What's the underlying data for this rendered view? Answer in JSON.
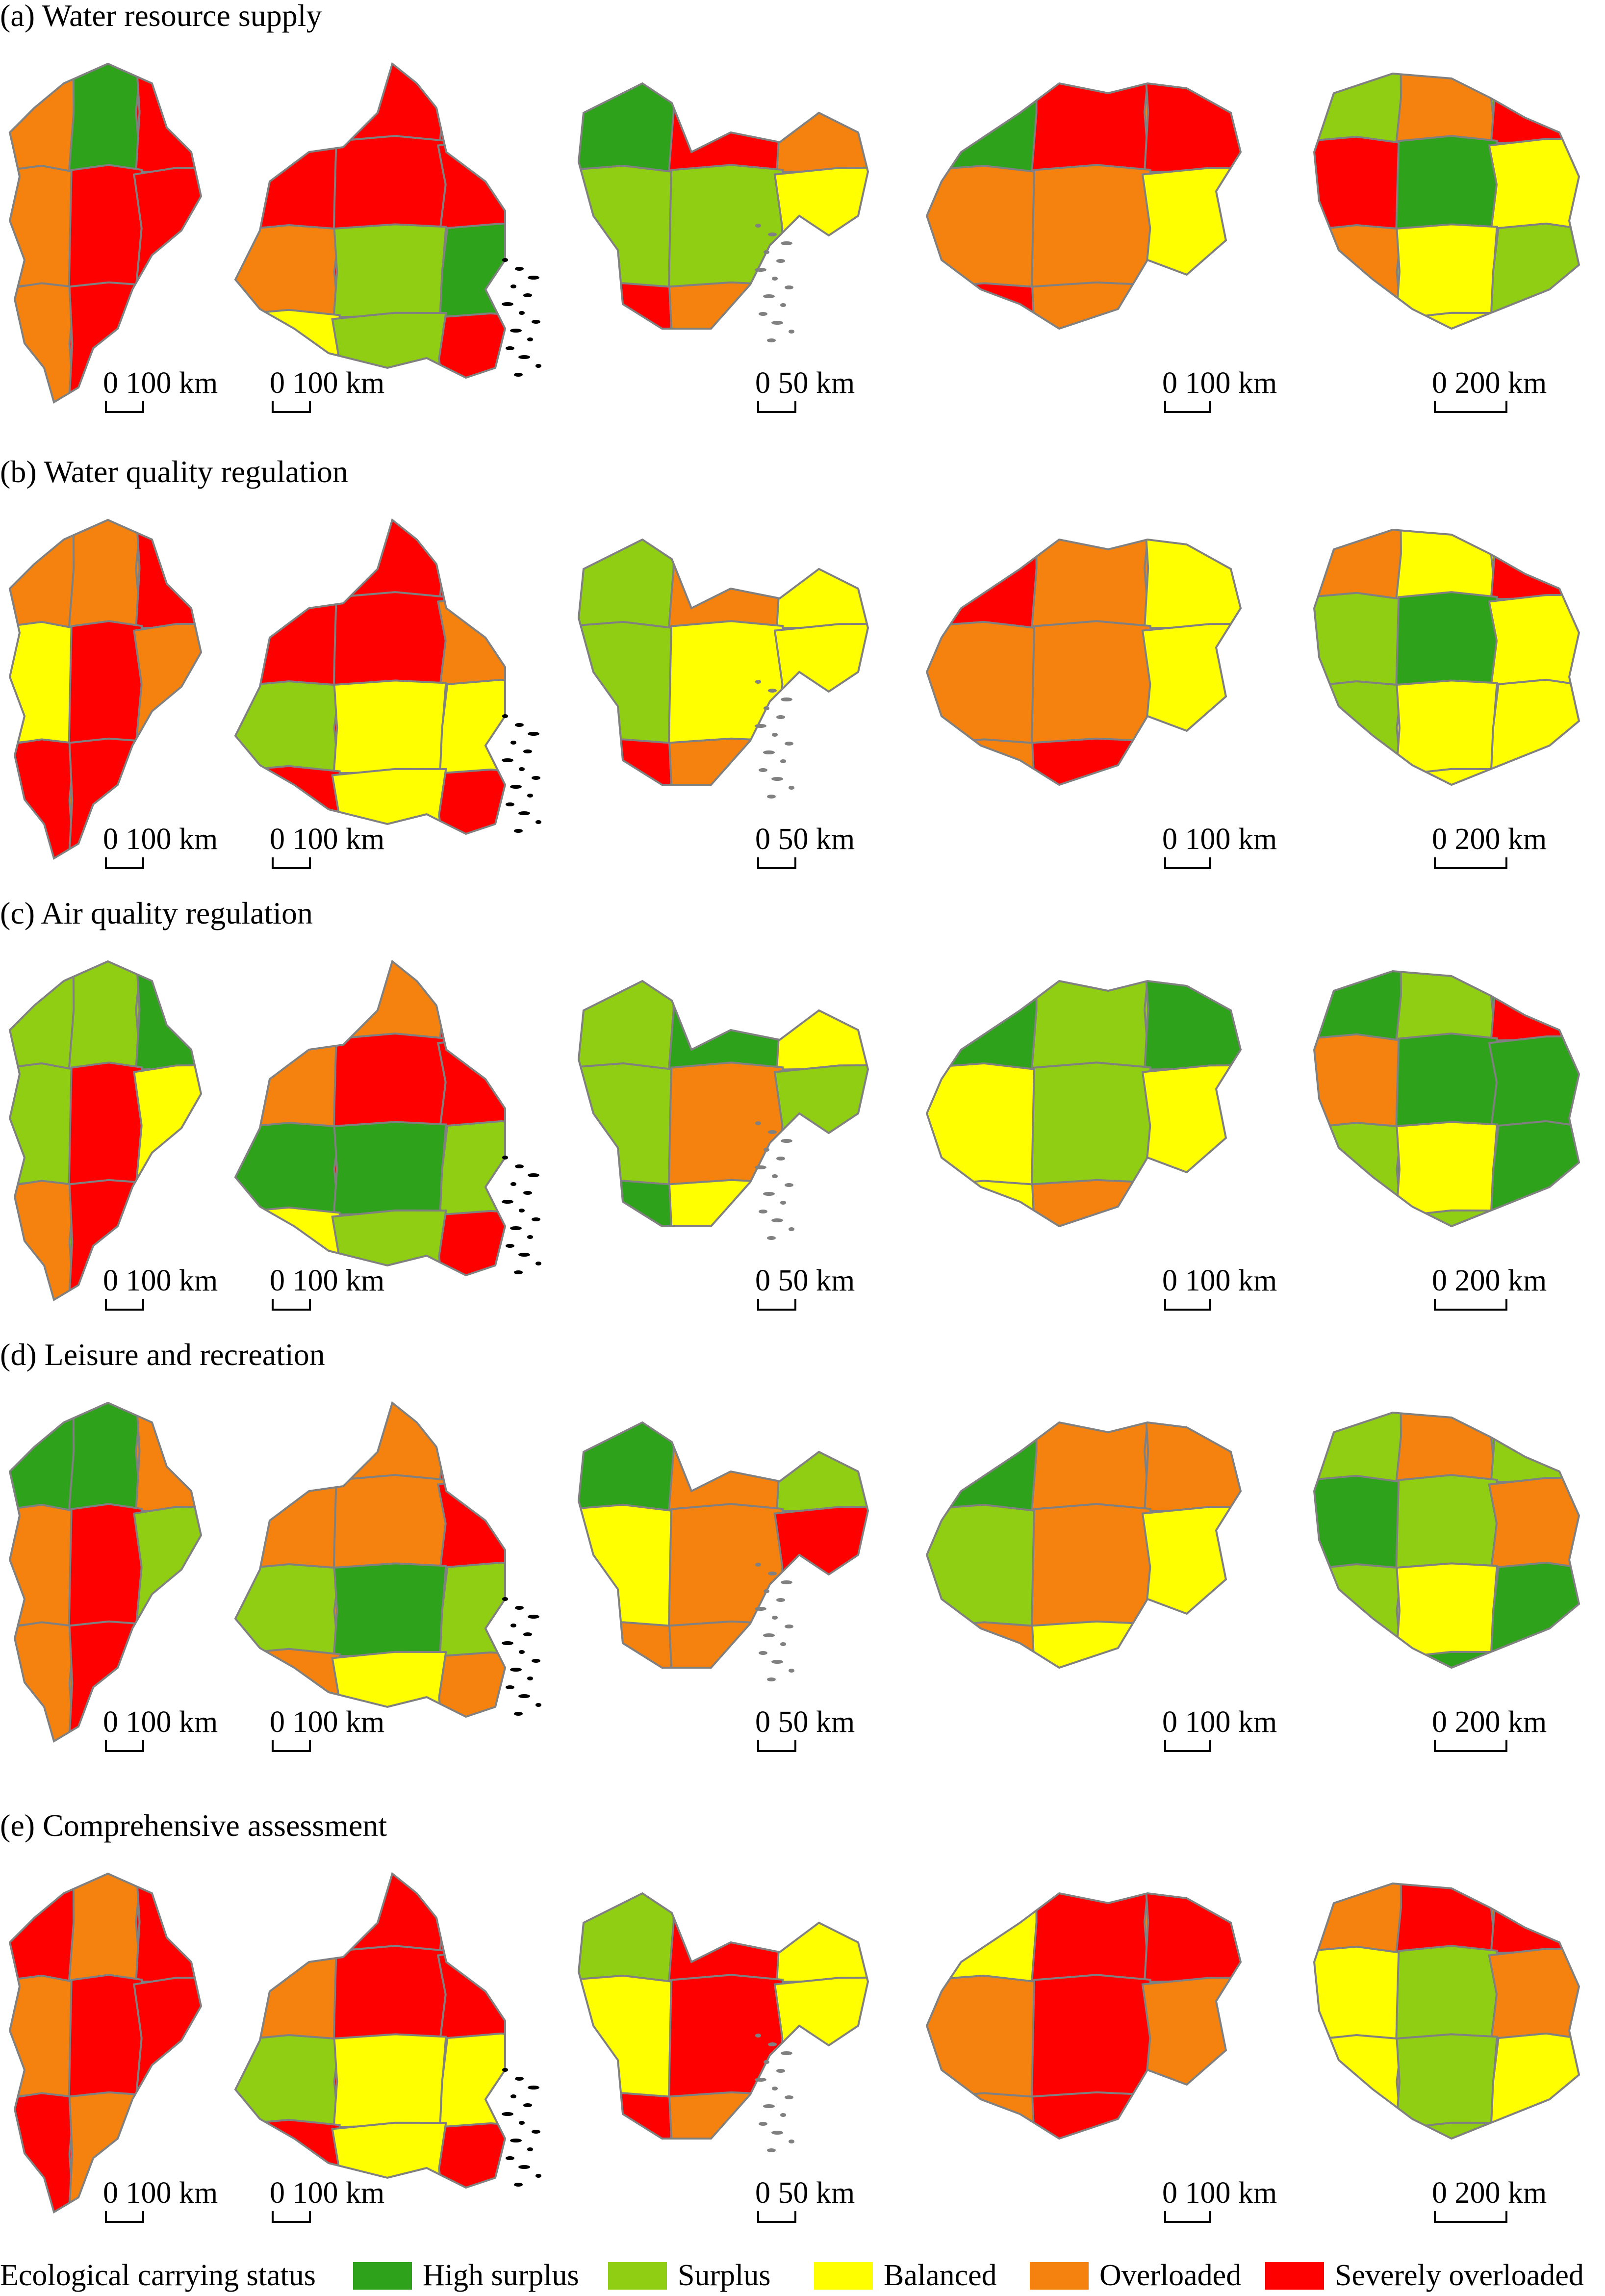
{
  "colors": {
    "high_surplus": "#2ea21a",
    "surplus": "#8fce12",
    "balanced": "#ffff00",
    "overloaded": "#f5820f",
    "severely_overloaded": "#ff0000",
    "boundary": "#808080",
    "islands": "#000000"
  },
  "panels": [
    {
      "title": "(a) Water resource supply",
      "maps": [
        {
          "icon": "region-map-1",
          "scale": "0 100 km",
          "main": "severely_overloaded",
          "mosaic": [
            "overloaded",
            "high_surplus",
            "severely_overloaded",
            "overloaded",
            "severely_overloaded",
            "severely_overloaded",
            "overloaded",
            "severely_overloaded",
            "severely_overloaded"
          ]
        },
        {
          "icon": "region-map-2",
          "scale": "0 100 km",
          "main": "severely_overloaded",
          "mosaic": [
            "severely_overloaded",
            "severely_overloaded",
            "severely_overloaded",
            "severely_overloaded",
            "severely_overloaded",
            "severely_overloaded",
            "overloaded",
            "surplus",
            "high_surplus",
            "balanced",
            "surplus"
          ]
        },
        {
          "icon": "region-map-3",
          "scale": "0 50 km",
          "main": "overloaded",
          "mosaic": [
            "high_surplus",
            "severely_overloaded",
            "overloaded",
            "surplus",
            "surplus",
            "balanced",
            "severely_overloaded",
            "overloaded",
            "balanced"
          ]
        },
        {
          "icon": "region-map-4",
          "scale": "0 100 km",
          "main": "overloaded",
          "mosaic": [
            "high_surplus",
            "severely_overloaded",
            "severely_overloaded",
            "overloaded",
            "overloaded",
            "balanced",
            "severely_overloaded",
            "overloaded",
            "overloaded"
          ]
        },
        {
          "icon": "region-map-5",
          "scale": "0 200 km",
          "main": "surplus",
          "mosaic": [
            "surplus",
            "overloaded",
            "severely_overloaded",
            "severely_overloaded",
            "high_surplus",
            "balanced",
            "overloaded",
            "balanced",
            "surplus",
            "high_surplus",
            "balanced",
            "surplus"
          ]
        }
      ]
    },
    {
      "title": "(b) Water quality regulation",
      "maps": [
        {
          "icon": "region-map-1",
          "scale": "0 100 km",
          "main": "overloaded",
          "mosaic": [
            "overloaded",
            "overloaded",
            "severely_overloaded",
            "balanced",
            "severely_overloaded",
            "overloaded",
            "severely_overloaded",
            "severely_overloaded",
            "overloaded"
          ]
        },
        {
          "icon": "region-map-2",
          "scale": "0 100 km",
          "main": "severely_overloaded",
          "mosaic": [
            "overloaded",
            "severely_overloaded",
            "severely_overloaded",
            "severely_overloaded",
            "severely_overloaded",
            "overloaded",
            "surplus",
            "balanced",
            "balanced",
            "severely_overloaded",
            "balanced"
          ]
        },
        {
          "icon": "region-map-3",
          "scale": "0 50 km",
          "main": "overloaded",
          "mosaic": [
            "surplus",
            "overloaded",
            "balanced",
            "surplus",
            "balanced",
            "balanced",
            "severely_overloaded",
            "overloaded",
            "balanced"
          ]
        },
        {
          "icon": "region-map-4",
          "scale": "0 100 km",
          "main": "overloaded",
          "mosaic": [
            "severely_overloaded",
            "overloaded",
            "balanced",
            "overloaded",
            "overloaded",
            "balanced",
            "overloaded",
            "severely_overloaded",
            "overloaded"
          ]
        },
        {
          "icon": "region-map-5",
          "scale": "0 200 km",
          "main": "balanced",
          "mosaic": [
            "overloaded",
            "balanced",
            "severely_overloaded",
            "surplus",
            "high_surplus",
            "balanced",
            "surplus",
            "balanced",
            "balanced",
            "high_surplus",
            "balanced",
            "surplus"
          ]
        }
      ]
    },
    {
      "title": "(c) Air quality regulation",
      "maps": [
        {
          "icon": "region-map-1",
          "scale": "0 100 km",
          "main": "surplus",
          "mosaic": [
            "surplus",
            "surplus",
            "high_surplus",
            "surplus",
            "severely_overloaded",
            "balanced",
            "overloaded",
            "severely_overloaded",
            "severely_overloaded"
          ]
        },
        {
          "icon": "region-map-2",
          "scale": "0 100 km",
          "main": "severely_overloaded",
          "mosaic": [
            "balanced",
            "overloaded",
            "severely_overloaded",
            "overloaded",
            "severely_overloaded",
            "severely_overloaded",
            "high_surplus",
            "high_surplus",
            "surplus",
            "balanced",
            "surplus"
          ]
        },
        {
          "icon": "region-map-3",
          "scale": "0 50 km",
          "main": "surplus",
          "mosaic": [
            "surplus",
            "high_surplus",
            "balanced",
            "surplus",
            "overloaded",
            "surplus",
            "high_surplus",
            "balanced",
            "surplus"
          ]
        },
        {
          "icon": "region-map-4",
          "scale": "0 100 km",
          "main": "surplus",
          "mosaic": [
            "high_surplus",
            "surplus",
            "high_surplus",
            "balanced",
            "surplus",
            "balanced",
            "balanced",
            "overloaded",
            "balanced"
          ]
        },
        {
          "icon": "region-map-5",
          "scale": "0 200 km",
          "main": "high_surplus",
          "mosaic": [
            "high_surplus",
            "surplus",
            "severely_overloaded",
            "overloaded",
            "high_surplus",
            "high_surplus",
            "surplus",
            "balanced",
            "high_surplus",
            "high_surplus",
            "surplus",
            "high_surplus"
          ]
        }
      ]
    },
    {
      "title": "(d) Leisure and recreation",
      "maps": [
        {
          "icon": "region-map-1",
          "scale": "0 100 km",
          "main": "overloaded",
          "mosaic": [
            "high_surplus",
            "high_surplus",
            "overloaded",
            "overloaded",
            "severely_overloaded",
            "surplus",
            "overloaded",
            "severely_overloaded",
            "overloaded"
          ]
        },
        {
          "icon": "region-map-2",
          "scale": "0 100 km",
          "main": "overloaded",
          "mosaic": [
            "overloaded",
            "overloaded",
            "severely_overloaded",
            "overloaded",
            "overloaded",
            "severely_overloaded",
            "surplus",
            "high_surplus",
            "surplus",
            "overloaded",
            "balanced"
          ]
        },
        {
          "icon": "region-map-3",
          "scale": "0 50 km",
          "main": "overloaded",
          "mosaic": [
            "high_surplus",
            "overloaded",
            "surplus",
            "balanced",
            "overloaded",
            "severely_overloaded",
            "overloaded",
            "overloaded",
            "balanced"
          ]
        },
        {
          "icon": "region-map-4",
          "scale": "0 100 km",
          "main": "overloaded",
          "mosaic": [
            "high_surplus",
            "overloaded",
            "overloaded",
            "surplus",
            "overloaded",
            "balanced",
            "overloaded",
            "balanced",
            "overloaded"
          ]
        },
        {
          "icon": "region-map-5",
          "scale": "0 200 km",
          "main": "surplus",
          "mosaic": [
            "surplus",
            "overloaded",
            "surplus",
            "high_surplus",
            "surplus",
            "overloaded",
            "surplus",
            "balanced",
            "high_surplus",
            "surplus",
            "high_surplus",
            "surplus"
          ]
        }
      ]
    },
    {
      "title": "(e) Comprehensive assessment",
      "maps": [
        {
          "icon": "region-map-1",
          "scale": "0 100 km",
          "main": "severely_overloaded",
          "mosaic": [
            "severely_overloaded",
            "overloaded",
            "severely_overloaded",
            "overloaded",
            "severely_overloaded",
            "severely_overloaded",
            "severely_overloaded",
            "overloaded",
            "severely_overloaded"
          ]
        },
        {
          "icon": "region-map-2",
          "scale": "0 100 km",
          "main": "severely_overloaded",
          "mosaic": [
            "severely_overloaded",
            "severely_overloaded",
            "severely_overloaded",
            "overloaded",
            "severely_overloaded",
            "severely_overloaded",
            "surplus",
            "balanced",
            "balanced",
            "severely_overloaded",
            "balanced"
          ]
        },
        {
          "icon": "region-map-3",
          "scale": "0 50 km",
          "main": "overloaded",
          "mosaic": [
            "surplus",
            "severely_overloaded",
            "balanced",
            "balanced",
            "severely_overloaded",
            "balanced",
            "severely_overloaded",
            "overloaded",
            "balanced"
          ]
        },
        {
          "icon": "region-map-4",
          "scale": "0 100 km",
          "main": "overloaded",
          "mosaic": [
            "balanced",
            "severely_overloaded",
            "severely_overloaded",
            "overloaded",
            "severely_overloaded",
            "overloaded",
            "overloaded",
            "severely_overloaded",
            "overloaded"
          ]
        },
        {
          "icon": "region-map-5",
          "scale": "0 200 km",
          "main": "overloaded",
          "mosaic": [
            "overloaded",
            "severely_overloaded",
            "severely_overloaded",
            "balanced",
            "surplus",
            "overloaded",
            "balanced",
            "surplus",
            "balanced",
            "high_surplus",
            "surplus",
            "surplus"
          ]
        }
      ]
    }
  ],
  "legend": {
    "title": "Ecological carrying status",
    "items": [
      {
        "key": "high_surplus",
        "label": "High surplus"
      },
      {
        "key": "surplus",
        "label": "Surplus"
      },
      {
        "key": "balanced",
        "label": "Balanced"
      },
      {
        "key": "overloaded",
        "label": "Overloaded"
      },
      {
        "key": "severely_overloaded",
        "label": "Severely overloaded"
      }
    ]
  }
}
